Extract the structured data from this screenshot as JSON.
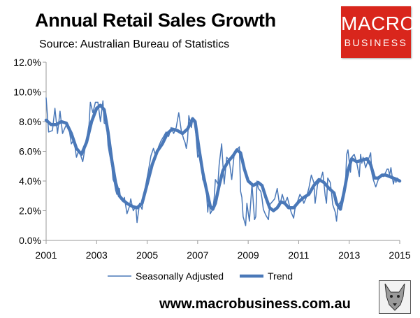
{
  "header": {
    "title": "Annual Retail Sales Growth",
    "subtitle": "Source: Australian Bureau of Statistics"
  },
  "logo": {
    "line1": "MACRO",
    "line2": "BUSINESS",
    "background": "#d9261c"
  },
  "footer": {
    "url": "www.macrobusiness.com.au"
  },
  "colors": {
    "series": "#4a78b8"
  },
  "chart_data": {
    "type": "line",
    "title": "Annual Retail Sales Growth",
    "xlabel": "",
    "ylabel": "",
    "xlim": [
      2001,
      2015
    ],
    "ylim": [
      0,
      12
    ],
    "x_ticks": [
      2001,
      2003,
      2005,
      2007,
      2009,
      2011,
      2013,
      2015
    ],
    "y_ticks": [
      0,
      2,
      4,
      6,
      8,
      10,
      12
    ],
    "y_tick_labels": [
      "0.0%",
      "2.0%",
      "4.0%",
      "6.0%",
      "8.0%",
      "10.0%",
      "12.0%"
    ],
    "grid": false,
    "legend": "bottom",
    "series": [
      {
        "name": "Seasonally Adjusted",
        "style": "thin",
        "points": [
          [
            2001.0,
            9.6
          ],
          [
            2001.1,
            7.3
          ],
          [
            2001.25,
            7.4
          ],
          [
            2001.35,
            8.9
          ],
          [
            2001.45,
            7.2
          ],
          [
            2001.55,
            8.7
          ],
          [
            2001.65,
            7.2
          ],
          [
            2001.8,
            7.8
          ],
          [
            2001.9,
            7.6
          ],
          [
            2002.0,
            6.5
          ],
          [
            2002.1,
            6.8
          ],
          [
            2002.2,
            5.6
          ],
          [
            2002.3,
            6.1
          ],
          [
            2002.45,
            5.3
          ],
          [
            2002.6,
            6.8
          ],
          [
            2002.7,
            7.8
          ],
          [
            2002.75,
            9.3
          ],
          [
            2002.85,
            8.6
          ],
          [
            2002.95,
            9.3
          ],
          [
            2003.05,
            9.3
          ],
          [
            2003.15,
            8.0
          ],
          [
            2003.25,
            9.4
          ],
          [
            2003.3,
            7.9
          ],
          [
            2003.4,
            7.8
          ],
          [
            2003.45,
            6.4
          ],
          [
            2003.5,
            5.9
          ],
          [
            2003.6,
            5.0
          ],
          [
            2003.65,
            4.1
          ],
          [
            2003.7,
            3.9
          ],
          [
            2003.75,
            3.4
          ],
          [
            2003.8,
            3.1
          ],
          [
            2003.9,
            3.5
          ],
          [
            2003.95,
            2.8
          ],
          [
            2004.05,
            2.6
          ],
          [
            2004.1,
            2.9
          ],
          [
            2004.2,
            1.8
          ],
          [
            2004.3,
            2.3
          ],
          [
            2004.35,
            2.8
          ],
          [
            2004.45,
            2.0
          ],
          [
            2004.55,
            2.3
          ],
          [
            2004.6,
            1.2
          ],
          [
            2004.7,
            2.5
          ],
          [
            2004.8,
            2.1
          ],
          [
            2004.85,
            2.9
          ],
          [
            2004.95,
            3.8
          ],
          [
            2005.05,
            4.7
          ],
          [
            2005.15,
            5.7
          ],
          [
            2005.25,
            6.2
          ],
          [
            2005.35,
            5.6
          ],
          [
            2005.45,
            6.3
          ],
          [
            2005.55,
            6.7
          ],
          [
            2005.65,
            7.0
          ],
          [
            2005.75,
            7.3
          ],
          [
            2005.85,
            7.0
          ],
          [
            2005.95,
            7.6
          ],
          [
            2006.05,
            7.2
          ],
          [
            2006.15,
            7.6
          ],
          [
            2006.25,
            8.6
          ],
          [
            2006.35,
            7.4
          ],
          [
            2006.45,
            6.8
          ],
          [
            2006.5,
            6.6
          ],
          [
            2006.55,
            6.2
          ],
          [
            2006.6,
            6.8
          ],
          [
            2006.65,
            8.4
          ],
          [
            2006.75,
            7.6
          ],
          [
            2006.8,
            8.1
          ],
          [
            2006.9,
            7.8
          ],
          [
            2007.0,
            5.6
          ],
          [
            2007.05,
            5.8
          ],
          [
            2007.15,
            5.2
          ],
          [
            2007.2,
            4.1
          ],
          [
            2007.3,
            3.7
          ],
          [
            2007.35,
            3.2
          ],
          [
            2007.4,
            1.9
          ],
          [
            2007.45,
            2.9
          ],
          [
            2007.5,
            1.8
          ],
          [
            2007.6,
            2.1
          ],
          [
            2007.65,
            2.8
          ],
          [
            2007.7,
            4.1
          ],
          [
            2007.8,
            3.8
          ],
          [
            2007.85,
            5.1
          ],
          [
            2007.95,
            6.5
          ],
          [
            2008.0,
            5.1
          ],
          [
            2008.05,
            3.8
          ],
          [
            2008.15,
            5.6
          ],
          [
            2008.25,
            5.4
          ],
          [
            2008.35,
            4.1
          ],
          [
            2008.45,
            5.9
          ],
          [
            2008.55,
            6.1
          ],
          [
            2008.65,
            6.3
          ],
          [
            2008.7,
            3.3
          ],
          [
            2008.75,
            2.9
          ],
          [
            2008.8,
            1.6
          ],
          [
            2008.9,
            1.0
          ],
          [
            2008.95,
            2.5
          ],
          [
            2009.05,
            1.3
          ],
          [
            2009.15,
            3.8
          ],
          [
            2009.25,
            1.4
          ],
          [
            2009.3,
            1.6
          ],
          [
            2009.35,
            4.0
          ],
          [
            2009.4,
            3.5
          ],
          [
            2009.5,
            3.3
          ],
          [
            2009.55,
            2.8
          ],
          [
            2009.6,
            2.1
          ],
          [
            2009.7,
            1.7
          ],
          [
            2009.8,
            1.4
          ],
          [
            2009.85,
            2.4
          ],
          [
            2009.9,
            2.5
          ],
          [
            2010.05,
            2.8
          ],
          [
            2010.15,
            3.5
          ],
          [
            2010.25,
            2.3
          ],
          [
            2010.35,
            3.1
          ],
          [
            2010.45,
            2.5
          ],
          [
            2010.55,
            2.9
          ],
          [
            2010.7,
            1.9
          ],
          [
            2010.8,
            1.5
          ],
          [
            2010.85,
            2.1
          ],
          [
            2010.95,
            2.6
          ],
          [
            2011.05,
            3.1
          ],
          [
            2011.15,
            2.8
          ],
          [
            2011.2,
            2.5
          ],
          [
            2011.3,
            2.9
          ],
          [
            2011.4,
            3.5
          ],
          [
            2011.5,
            4.4
          ],
          [
            2011.6,
            3.9
          ],
          [
            2011.65,
            2.5
          ],
          [
            2011.75,
            3.8
          ],
          [
            2011.85,
            4.0
          ],
          [
            2011.95,
            4.6
          ],
          [
            2012.05,
            3.0
          ],
          [
            2012.1,
            2.5
          ],
          [
            2012.15,
            4.2
          ],
          [
            2012.25,
            3.9
          ],
          [
            2012.3,
            3.2
          ],
          [
            2012.35,
            2.4
          ],
          [
            2012.45,
            1.9
          ],
          [
            2012.5,
            1.3
          ],
          [
            2012.55,
            2.3
          ],
          [
            2012.65,
            2.6
          ],
          [
            2012.75,
            2.8
          ],
          [
            2012.8,
            3.4
          ],
          [
            2012.85,
            3.8
          ],
          [
            2012.9,
            5.8
          ],
          [
            2012.95,
            6.1
          ],
          [
            2013.05,
            4.6
          ],
          [
            2013.1,
            5.6
          ],
          [
            2013.2,
            5.8
          ],
          [
            2013.3,
            5.2
          ],
          [
            2013.4,
            4.3
          ],
          [
            2013.45,
            5.8
          ],
          [
            2013.5,
            5.2
          ],
          [
            2013.55,
            5.6
          ],
          [
            2013.65,
            4.9
          ],
          [
            2013.75,
            5.4
          ],
          [
            2013.85,
            5.9
          ],
          [
            2013.9,
            4.5
          ],
          [
            2013.95,
            4.1
          ],
          [
            2014.05,
            3.6
          ],
          [
            2014.15,
            4.1
          ],
          [
            2014.25,
            4.4
          ],
          [
            2014.35,
            4.3
          ],
          [
            2014.45,
            4.6
          ],
          [
            2014.5,
            4.8
          ],
          [
            2014.55,
            4.8
          ],
          [
            2014.6,
            4.4
          ],
          [
            2014.65,
            4.9
          ],
          [
            2014.7,
            4.3
          ],
          [
            2014.75,
            3.8
          ],
          [
            2014.8,
            4.2
          ],
          [
            2014.85,
            3.9
          ],
          [
            2014.9,
            4.2
          ],
          [
            2014.95,
            4.0
          ],
          [
            2015.0,
            4.0
          ]
        ]
      },
      {
        "name": "Trend",
        "style": "thick",
        "points": [
          [
            2001.0,
            8.1
          ],
          [
            2001.2,
            7.8
          ],
          [
            2001.4,
            7.8
          ],
          [
            2001.6,
            8.0
          ],
          [
            2001.8,
            7.9
          ],
          [
            2002.0,
            7.2
          ],
          [
            2002.2,
            6.2
          ],
          [
            2002.4,
            5.8
          ],
          [
            2002.6,
            6.6
          ],
          [
            2002.8,
            8.0
          ],
          [
            2003.0,
            8.9
          ],
          [
            2003.15,
            9.1
          ],
          [
            2003.3,
            8.8
          ],
          [
            2003.45,
            7.3
          ],
          [
            2003.6,
            5.4
          ],
          [
            2003.75,
            3.9
          ],
          [
            2003.9,
            3.0
          ],
          [
            2004.05,
            2.7
          ],
          [
            2004.2,
            2.5
          ],
          [
            2004.4,
            2.3
          ],
          [
            2004.6,
            2.2
          ],
          [
            2004.8,
            2.5
          ],
          [
            2005.0,
            3.8
          ],
          [
            2005.2,
            5.1
          ],
          [
            2005.4,
            6.0
          ],
          [
            2005.6,
            6.5
          ],
          [
            2005.8,
            7.2
          ],
          [
            2006.0,
            7.5
          ],
          [
            2006.2,
            7.4
          ],
          [
            2006.4,
            7.2
          ],
          [
            2006.6,
            7.5
          ],
          [
            2006.8,
            8.2
          ],
          [
            2006.9,
            8.0
          ],
          [
            2007.05,
            6.2
          ],
          [
            2007.2,
            4.6
          ],
          [
            2007.35,
            3.4
          ],
          [
            2007.5,
            2.3
          ],
          [
            2007.6,
            2.1
          ],
          [
            2007.7,
            2.5
          ],
          [
            2007.85,
            3.7
          ],
          [
            2008.0,
            4.7
          ],
          [
            2008.2,
            5.3
          ],
          [
            2008.4,
            5.7
          ],
          [
            2008.55,
            6.1
          ],
          [
            2008.7,
            5.9
          ],
          [
            2008.85,
            4.8
          ],
          [
            2009.0,
            4.0
          ],
          [
            2009.2,
            3.7
          ],
          [
            2009.4,
            3.9
          ],
          [
            2009.55,
            3.7
          ],
          [
            2009.7,
            2.9
          ],
          [
            2009.85,
            2.2
          ],
          [
            2010.0,
            2.0
          ],
          [
            2010.15,
            2.2
          ],
          [
            2010.3,
            2.6
          ],
          [
            2010.45,
            2.5
          ],
          [
            2010.6,
            2.2
          ],
          [
            2010.8,
            2.2
          ],
          [
            2011.0,
            2.6
          ],
          [
            2011.2,
            2.9
          ],
          [
            2011.4,
            3.1
          ],
          [
            2011.6,
            3.7
          ],
          [
            2011.8,
            4.1
          ],
          [
            2012.0,
            3.9
          ],
          [
            2012.2,
            3.5
          ],
          [
            2012.4,
            3.2
          ],
          [
            2012.5,
            2.5
          ],
          [
            2012.65,
            2.1
          ],
          [
            2012.8,
            3.3
          ],
          [
            2012.95,
            4.7
          ],
          [
            2013.1,
            5.5
          ],
          [
            2013.3,
            5.3
          ],
          [
            2013.5,
            5.4
          ],
          [
            2013.7,
            5.5
          ],
          [
            2013.85,
            5.1
          ],
          [
            2014.0,
            4.2
          ],
          [
            2014.15,
            4.2
          ],
          [
            2014.3,
            4.4
          ],
          [
            2014.45,
            4.4
          ],
          [
            2014.6,
            4.3
          ],
          [
            2014.75,
            4.2
          ],
          [
            2014.9,
            4.1
          ],
          [
            2015.0,
            4.0
          ]
        ]
      }
    ]
  }
}
